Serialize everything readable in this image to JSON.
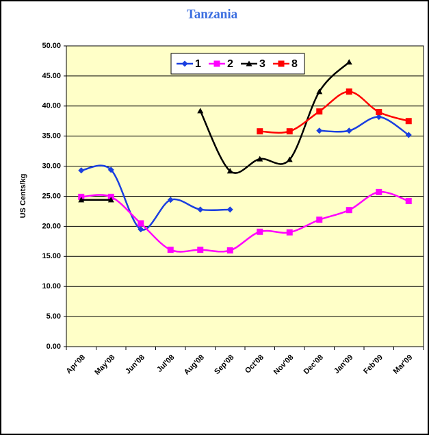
{
  "chart_data": {
    "type": "line",
    "title": "Tanzania",
    "y_label": "US Cents/kg",
    "categories": [
      "Apr'08",
      "May'08",
      "Jun'08",
      "Jul'08",
      "Aug'08",
      "Sep'08",
      "Oct'08",
      "Nov'08",
      "Dec'08",
      "Jan'09",
      "Feb'09",
      "Mar'09"
    ],
    "series": [
      {
        "name": "1",
        "color": "#1a3fe0",
        "marker": "diamond",
        "values": [
          29.3,
          29.4,
          19.5,
          24.4,
          22.8,
          22.8,
          null,
          null,
          35.9,
          35.9,
          38.2,
          35.2
        ]
      },
      {
        "name": "2",
        "color": "#ff00ff",
        "marker": "square",
        "values": [
          24.9,
          24.9,
          20.5,
          16.1,
          16.1,
          16.0,
          19.1,
          19.0,
          21.1,
          22.7,
          25.7,
          24.2
        ]
      },
      {
        "name": "3",
        "color": "#000000",
        "marker": "triangle",
        "values": [
          24.4,
          24.4,
          null,
          null,
          39.2,
          29.2,
          31.2,
          31.1,
          42.4,
          47.3,
          null,
          null
        ]
      },
      {
        "name": "8",
        "color": "#ff0000",
        "marker": "square",
        "values": [
          null,
          null,
          null,
          null,
          null,
          null,
          35.8,
          35.8,
          39.1,
          42.4,
          39.0,
          37.5
        ]
      }
    ],
    "ylim": [
      0,
      50
    ],
    "yticks": [
      {
        "value": 0,
        "label": "0.00"
      },
      {
        "value": 5,
        "label": "5.00"
      },
      {
        "value": 10,
        "label": "10.00"
      },
      {
        "value": 15,
        "label": "15.00"
      },
      {
        "value": 20,
        "label": "20.00"
      },
      {
        "value": 25,
        "label": "25.00"
      },
      {
        "value": 30,
        "label": "30.00"
      },
      {
        "value": 35,
        "label": "35.00"
      },
      {
        "value": 40,
        "label": "40.00"
      },
      {
        "value": 45,
        "label": "45.00"
      },
      {
        "value": 50,
        "label": "50.00"
      }
    ],
    "grid": true,
    "smooth": true,
    "background": "#ffffc8",
    "legend": "top"
  }
}
